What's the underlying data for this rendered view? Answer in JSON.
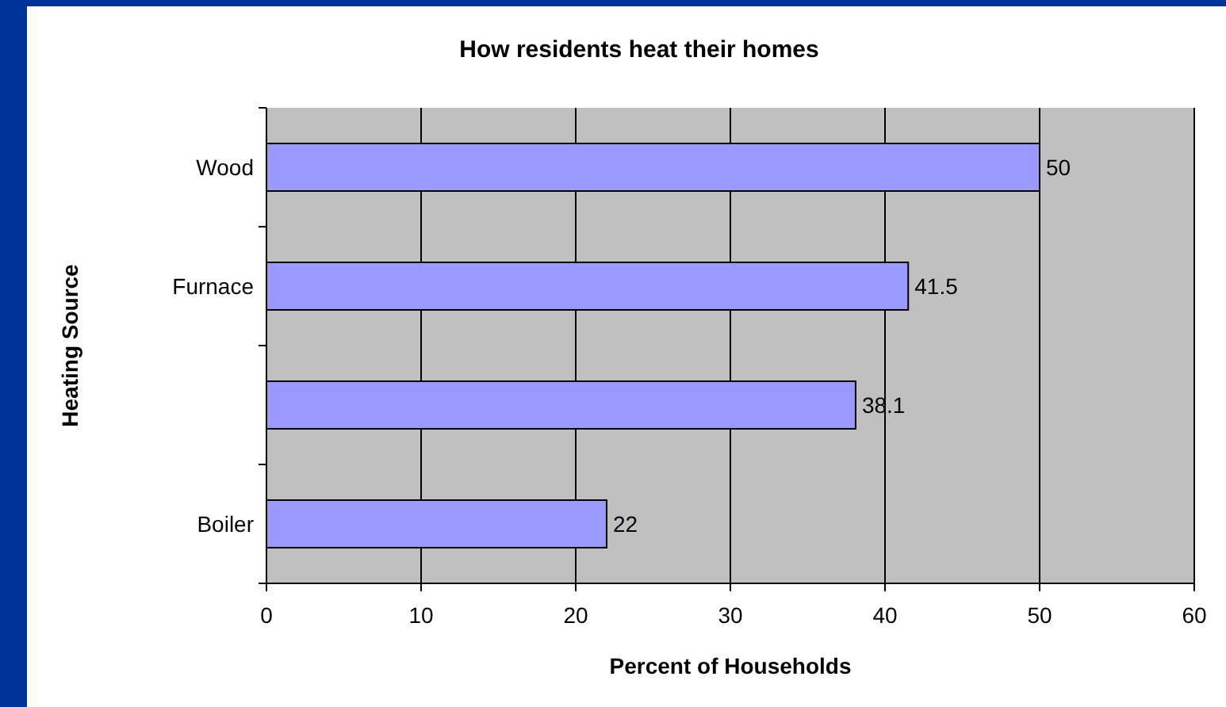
{
  "chart_data": {
    "type": "bar",
    "orientation": "horizontal",
    "title": "How residents heat their homes",
    "xlabel": "Percent of Households",
    "ylabel": "Heating Source",
    "categories": [
      "Wood",
      "Furnace",
      null,
      "Boiler"
    ],
    "values": [
      50,
      41.5,
      38.1,
      22
    ],
    "color": "#9999ff",
    "xlim": [
      0,
      60
    ],
    "xticks": [
      0,
      10,
      20,
      30,
      40,
      50,
      60
    ],
    "grid": "x",
    "data_labels": true
  }
}
